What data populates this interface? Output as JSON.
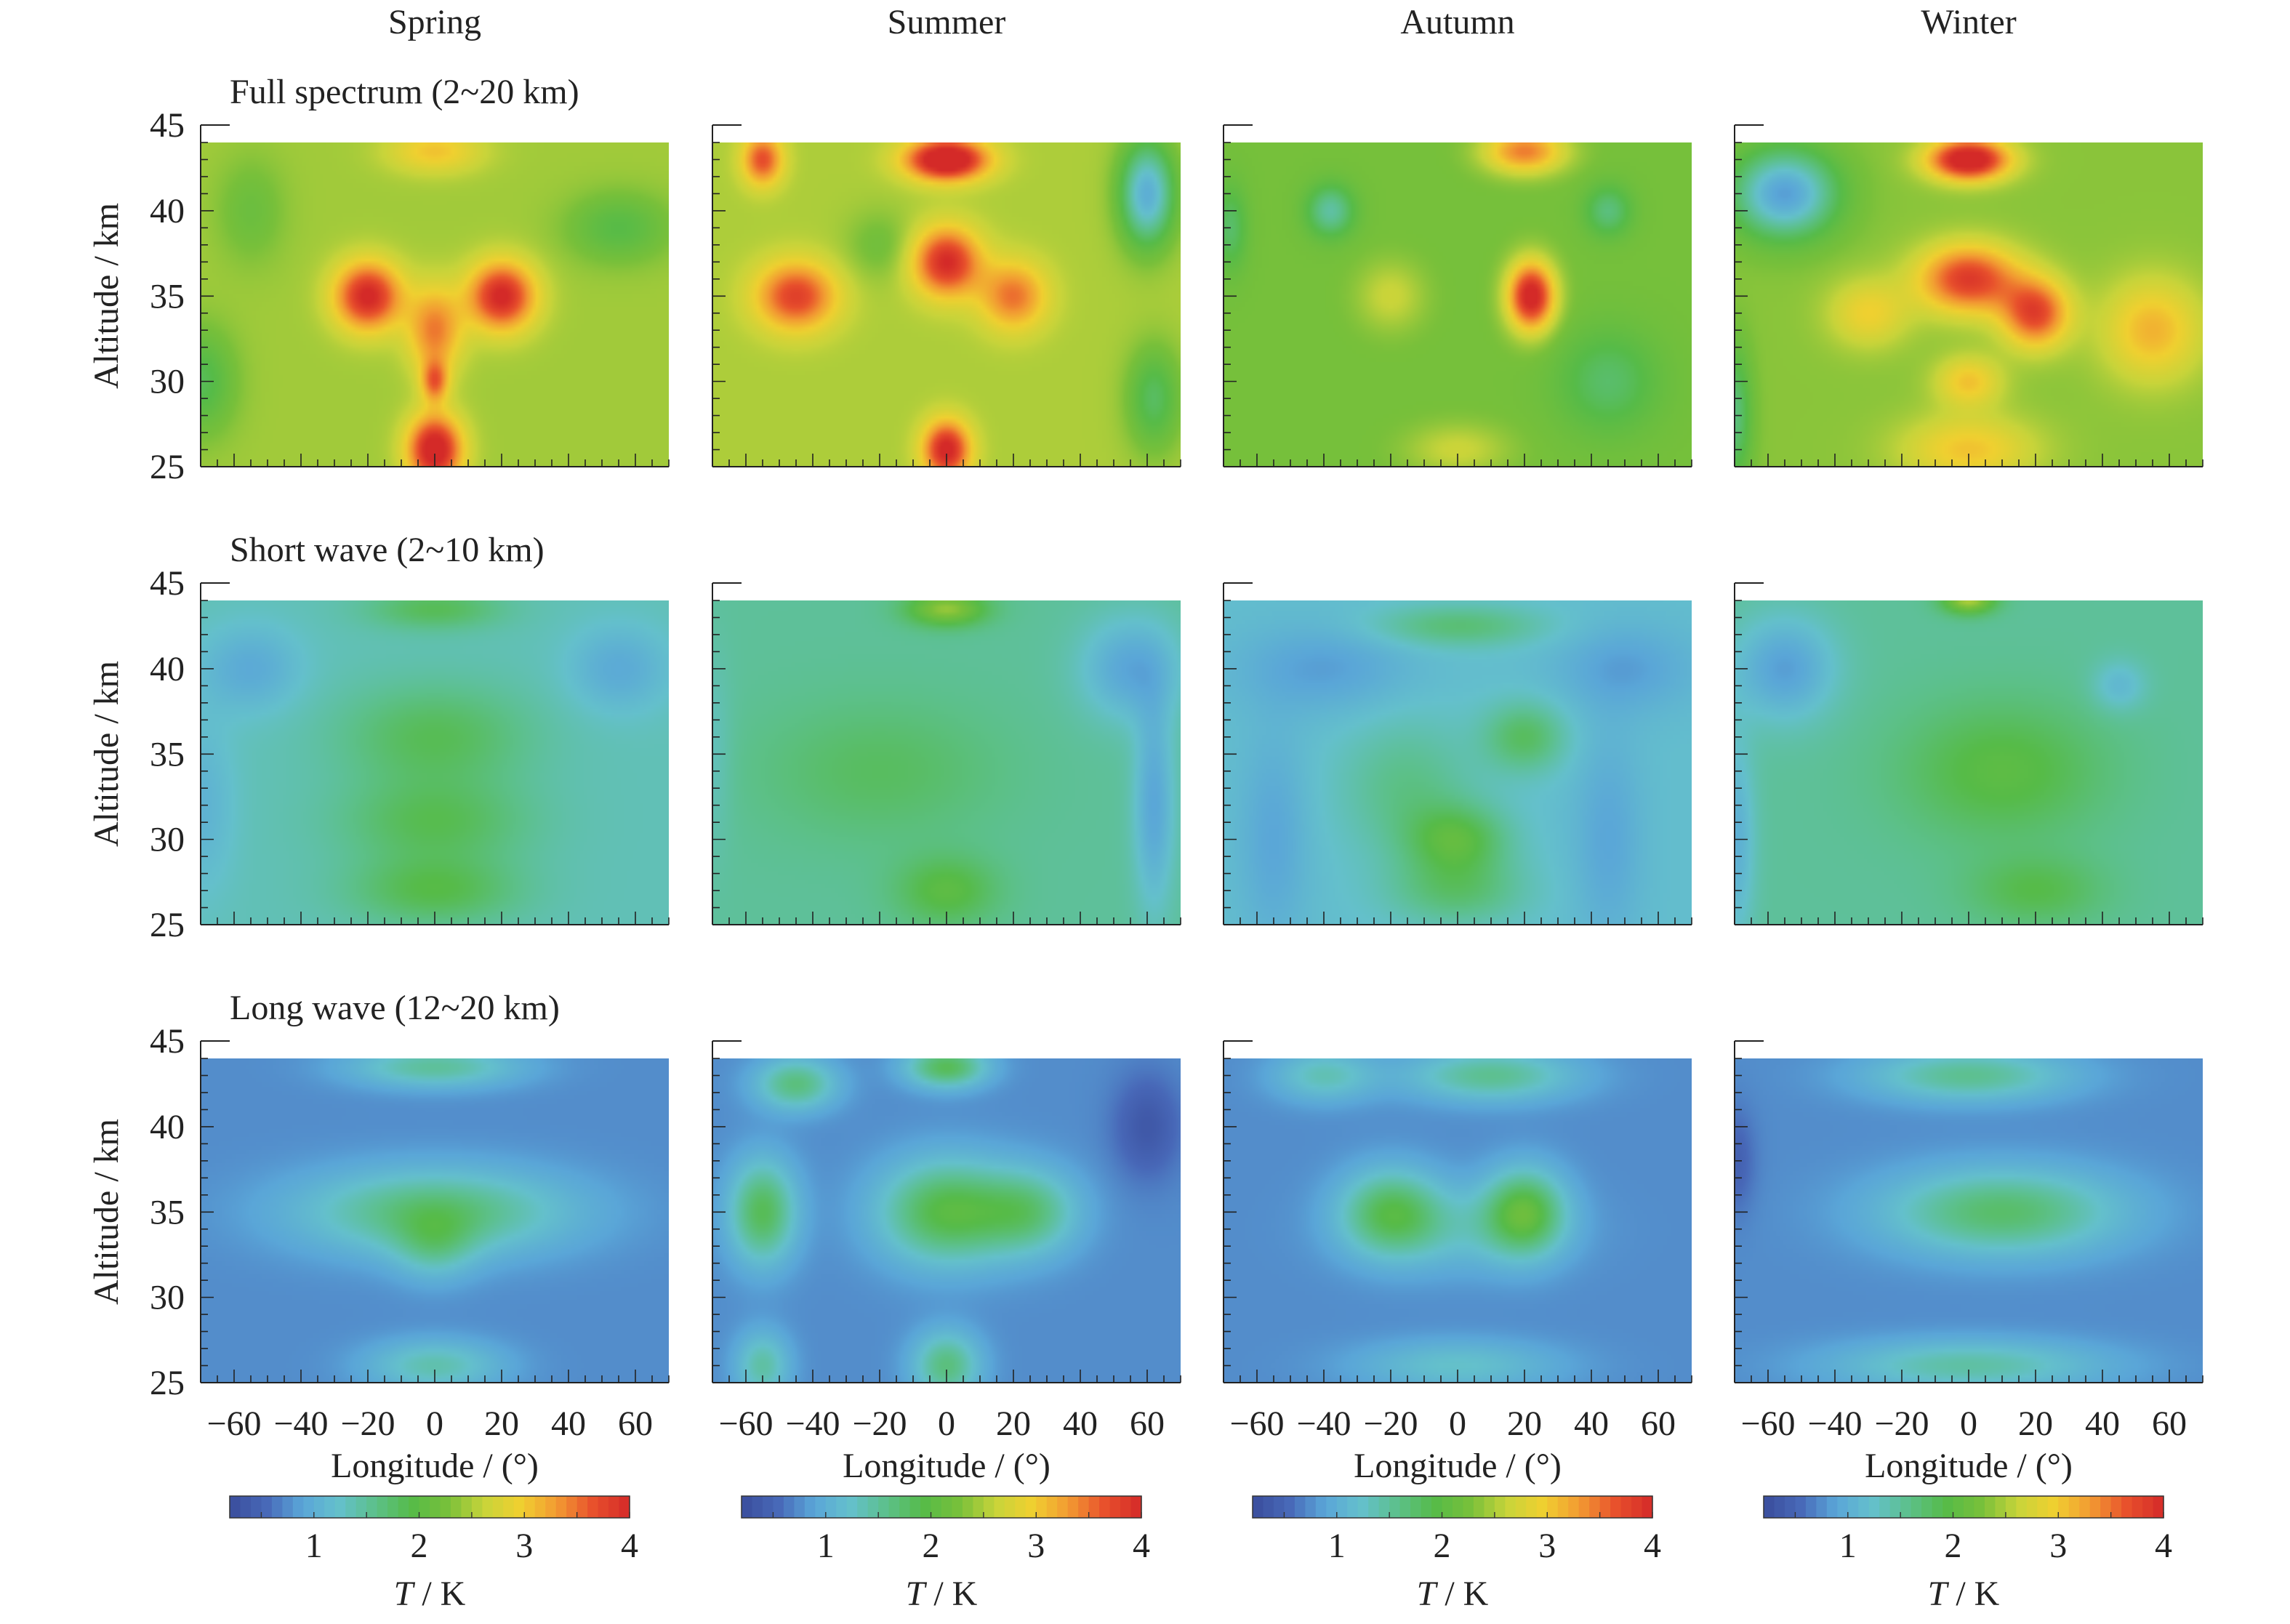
{
  "figure": {
    "seasons": [
      "Spring",
      "Summer",
      "Autumn",
      "Winter"
    ],
    "row_titles": [
      "Full spectrum (2~20 km)",
      "Short wave (2~10 km)",
      "Long wave (12~20 km)"
    ],
    "ylabel": "Altitude / km",
    "xlabel": "Longitude / (°)",
    "colorbar_label_italic": "T",
    "colorbar_label_rest": " / K",
    "colorbar_ticks": [
      "1",
      "2",
      "3",
      "4"
    ],
    "colorbar_range": [
      0.2,
      4.0
    ],
    "colors": {
      "palette": [
        "#3a4d9c",
        "#4868b8",
        "#5aa6d8",
        "#64c0cc",
        "#5cc08a",
        "#56bb48",
        "#78c03a",
        "#c8d43a",
        "#f0d030",
        "#f29a32",
        "#e8502c",
        "#d42a28"
      ]
    }
  },
  "chart_data": {
    "type": "heatmap",
    "title": "",
    "xlabel": "Longitude / (°)",
    "ylabel": "Altitude / km",
    "zlabel": "T / K",
    "xlim": [
      -70,
      70
    ],
    "ylim": [
      25,
      45
    ],
    "zlim": [
      0.2,
      4.0
    ],
    "x_ticks": [
      -60,
      -40,
      -20,
      0,
      20,
      40,
      60
    ],
    "y_ticks": [
      25,
      30,
      35,
      40,
      45
    ],
    "data_top_altitude": 44,
    "colorbar_ticks": [
      1,
      2,
      3,
      4
    ],
    "panels": [
      {
        "row": "Full spectrum (2~20 km)",
        "season": "Spring",
        "base": 2.45,
        "features": [
          [
            -20,
            35,
            10,
            2.0,
            1.6
          ],
          [
            20,
            35,
            10,
            2.0,
            1.6
          ],
          [
            0,
            33,
            8,
            2.5,
            1.0
          ],
          [
            0,
            30,
            4,
            1.2,
            1.0
          ],
          [
            0,
            26,
            8,
            2.0,
            1.8
          ],
          [
            0,
            43.5,
            14,
            1.3,
            0.6
          ],
          [
            -70,
            30,
            10,
            3.0,
            -0.6
          ],
          [
            55,
            39,
            15,
            2.0,
            -0.5
          ],
          [
            -55,
            40,
            10,
            3.0,
            -0.3
          ]
        ]
      },
      {
        "row": "Full spectrum (2~20 km)",
        "season": "Summer",
        "base": 2.5,
        "features": [
          [
            0,
            43,
            12,
            1.2,
            2.0
          ],
          [
            -55,
            43,
            6,
            1.5,
            1.2
          ],
          [
            -45,
            35,
            12,
            2.0,
            1.3
          ],
          [
            0,
            37,
            10,
            2.0,
            1.5
          ],
          [
            20,
            35,
            10,
            2.0,
            1.0
          ],
          [
            0,
            26,
            7,
            1.7,
            1.6
          ],
          [
            60,
            41,
            8,
            3.0,
            -1.5
          ],
          [
            -20,
            38,
            10,
            2.0,
            -0.3
          ],
          [
            62,
            29,
            8,
            3.0,
            -0.7
          ]
        ]
      },
      {
        "row": "Full spectrum (2~20 km)",
        "season": "Autumn",
        "base": 2.25,
        "features": [
          [
            22,
            35,
            7,
            2.0,
            1.9
          ],
          [
            -20,
            35,
            10,
            2.0,
            0.4
          ],
          [
            20,
            43.5,
            12,
            1.3,
            1.2
          ],
          [
            -38,
            40,
            7,
            1.5,
            -0.8
          ],
          [
            45,
            40,
            7,
            1.5,
            -0.6
          ],
          [
            -68,
            39,
            5,
            2.5,
            -0.5
          ],
          [
            45,
            30,
            15,
            3.0,
            -0.5
          ],
          [
            0,
            26,
            15,
            1.5,
            0.4
          ]
        ]
      },
      {
        "row": "Full spectrum (2~20 km)",
        "season": "Winter",
        "base": 2.35,
        "features": [
          [
            0,
            43,
            12,
            1.2,
            2.0
          ],
          [
            -55,
            41,
            15,
            2.5,
            -1.5
          ],
          [
            0,
            36,
            15,
            2.0,
            1.5
          ],
          [
            20,
            34,
            10,
            2.0,
            1.4
          ],
          [
            -30,
            34,
            12,
            2.0,
            0.6
          ],
          [
            55,
            33,
            15,
            3.0,
            0.8
          ],
          [
            0,
            30,
            10,
            1.5,
            0.7
          ],
          [
            0,
            26,
            20,
            2.0,
            0.7
          ],
          [
            -70,
            28,
            5,
            4.0,
            -0.7
          ]
        ]
      },
      {
        "row": "Short wave (2~10 km)",
        "season": "Spring",
        "base": 1.35,
        "features": [
          [
            0,
            43.5,
            20,
            1.2,
            0.5
          ],
          [
            -55,
            40,
            15,
            2.5,
            -0.4
          ],
          [
            55,
            40,
            15,
            2.5,
            -0.4
          ],
          [
            0,
            36,
            28,
            3.0,
            0.5
          ],
          [
            0,
            31,
            28,
            2.5,
            0.5
          ],
          [
            0,
            27,
            25,
            2.0,
            0.55
          ],
          [
            -70,
            32,
            10,
            5.0,
            -0.3
          ]
        ]
      },
      {
        "row": "Short wave (2~10 km)",
        "season": "Summer",
        "base": 1.5,
        "features": [
          [
            0,
            43.5,
            12,
            1.0,
            0.9
          ],
          [
            55,
            40,
            15,
            3.0,
            -0.6
          ],
          [
            -20,
            34,
            35,
            4.0,
            0.3
          ],
          [
            0,
            27,
            15,
            2.0,
            0.5
          ],
          [
            62,
            32,
            6,
            6.0,
            -0.6
          ],
          [
            -70,
            35,
            6,
            6.0,
            -0.2
          ]
        ]
      },
      {
        "row": "Short wave (2~10 km)",
        "season": "Autumn",
        "base": 1.2,
        "features": [
          [
            -40,
            40,
            25,
            2.5,
            -0.35
          ],
          [
            50,
            40,
            20,
            2.5,
            -0.35
          ],
          [
            0,
            42.5,
            25,
            1.2,
            0.5
          ],
          [
            20,
            36,
            12,
            2.0,
            0.6
          ],
          [
            -15,
            33,
            20,
            4.0,
            0.4
          ],
          [
            0,
            30,
            15,
            2.0,
            0.7
          ],
          [
            0,
            27,
            20,
            2.0,
            0.5
          ],
          [
            -55,
            30,
            10,
            6.0,
            -0.3
          ],
          [
            45,
            30,
            10,
            6.0,
            -0.3
          ]
        ]
      },
      {
        "row": "Short wave (2~10 km)",
        "season": "Winter",
        "base": 1.5,
        "features": [
          [
            -55,
            40,
            15,
            3.0,
            -0.65
          ],
          [
            -70,
            30,
            6,
            6.0,
            -0.5
          ],
          [
            10,
            34,
            30,
            4.0,
            0.5
          ],
          [
            20,
            27,
            20,
            2.0,
            0.4
          ],
          [
            0,
            44,
            8,
            0.8,
            1.0
          ],
          [
            45,
            39,
            8,
            1.5,
            -0.4
          ]
        ]
      },
      {
        "row": "Long wave (12~20 km)",
        "season": "Spring",
        "base": 0.75,
        "features": [
          [
            0,
            35,
            40,
            2.5,
            0.95
          ],
          [
            0,
            33,
            12,
            2.0,
            0.5
          ],
          [
            0,
            43.5,
            25,
            1.2,
            0.75
          ],
          [
            0,
            26,
            20,
            1.5,
            0.65
          ]
        ]
      },
      {
        "row": "Long wave (12~20 km)",
        "season": "Summer",
        "base": 0.75,
        "features": [
          [
            -55,
            35,
            10,
            3.0,
            1.1
          ],
          [
            0,
            35,
            20,
            3.0,
            1.2
          ],
          [
            25,
            35,
            15,
            2.5,
            0.8
          ],
          [
            -45,
            42.5,
            12,
            1.5,
            0.9
          ],
          [
            0,
            43.5,
            12,
            1.2,
            1.1
          ],
          [
            -55,
            26,
            8,
            2.0,
            0.7
          ],
          [
            0,
            26,
            10,
            2.0,
            0.9
          ],
          [
            60,
            40,
            10,
            3.0,
            -0.4
          ]
        ]
      },
      {
        "row": "Long wave (12~20 km)",
        "season": "Autumn",
        "base": 0.75,
        "features": [
          [
            -20,
            35,
            15,
            2.5,
            1.0
          ],
          [
            20,
            35,
            12,
            2.5,
            1.2
          ],
          [
            0,
            34,
            30,
            2.5,
            0.4
          ],
          [
            -40,
            43,
            15,
            1.5,
            0.6
          ],
          [
            10,
            43,
            25,
            1.5,
            0.8
          ],
          [
            0,
            26,
            30,
            1.5,
            0.5
          ]
        ]
      },
      {
        "row": "Long wave (12~20 km)",
        "season": "Winter",
        "base": 0.75,
        "features": [
          [
            10,
            35,
            35,
            2.5,
            1.0
          ],
          [
            0,
            43,
            30,
            1.5,
            0.8
          ],
          [
            0,
            26,
            40,
            1.5,
            0.7
          ],
          [
            -70,
            38,
            6,
            3.0,
            -0.3
          ]
        ]
      }
    ]
  }
}
